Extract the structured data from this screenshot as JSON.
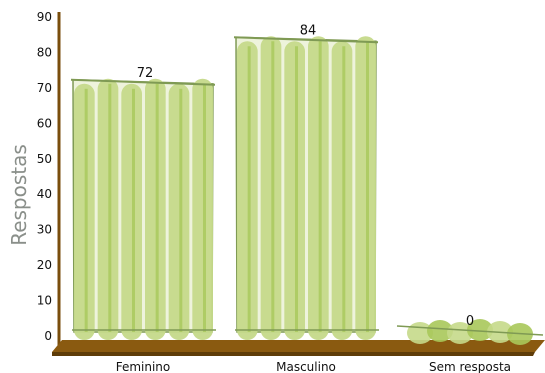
{
  "chart_data": {
    "type": "bar",
    "title": "",
    "xlabel": "",
    "ylabel": "Respostas",
    "categories": [
      "Feminino",
      "Masculino",
      "Sem resposta"
    ],
    "values": [
      72,
      84,
      0
    ],
    "data_labels": [
      "72",
      "84",
      "0"
    ],
    "ylim": [
      0,
      90
    ],
    "yticks": [
      0,
      10,
      20,
      30,
      40,
      50,
      60,
      70,
      80,
      90
    ],
    "grid": false,
    "legend": "none",
    "colors": {
      "bar_light": "#c5d98a",
      "bar_mid": "#a8c85a",
      "bar_dark": "#8fb43a",
      "outline": "#7f9a54",
      "floor": "#8a5a10",
      "floor_dark": "#5e3c08",
      "axis": "#7a4e0c"
    }
  }
}
